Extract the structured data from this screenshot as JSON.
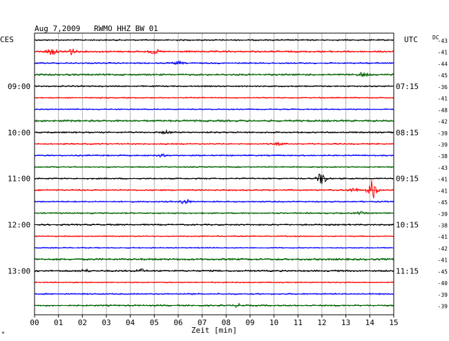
{
  "chart_data": {
    "type": "line",
    "title": "Aug 7,2009   RWMO HHZ BW 01",
    "left_timezone": "CES",
    "right_timezone": "UTC",
    "dc_label": "DC",
    "xlabel": "Zeit [min]",
    "x_ticks": [
      "00",
      "01",
      "02",
      "03",
      "04",
      "05",
      "06",
      "07",
      "08",
      "09",
      "10",
      "11",
      "12",
      "13",
      "14",
      "15"
    ],
    "xlim": [
      0,
      15
    ],
    "grid": true,
    "rows_per_hour": 4,
    "hour_labels_left": [
      "09:00",
      "10:00",
      "11:00",
      "12:00",
      "13:00"
    ],
    "hour_labels_right": [
      "07:15",
      "08:15",
      "09:15",
      "10:15",
      "11:15"
    ],
    "trace_colors": [
      "#000000",
      "#ff0000",
      "#0000ff",
      "#006400"
    ],
    "traces": [
      {
        "row": 0,
        "color": "#000000",
        "dc": -43,
        "amp": 1.0,
        "events": []
      },
      {
        "row": 1,
        "color": "#ff0000",
        "dc": -41,
        "amp": 1.2,
        "events": [
          {
            "t": 0.7,
            "a": 5
          },
          {
            "t": 1.5,
            "a": 5
          },
          {
            "t": 5.0,
            "a": 3
          }
        ]
      },
      {
        "row": 2,
        "color": "#0000ff",
        "dc": -44,
        "amp": 1.0,
        "events": [
          {
            "t": 6.0,
            "a": 2
          }
        ]
      },
      {
        "row": 3,
        "color": "#006400",
        "dc": -45,
        "amp": 1.3,
        "events": [
          {
            "t": 13.7,
            "a": 3
          }
        ]
      },
      {
        "row": 4,
        "color": "#000000",
        "dc": -36,
        "amp": 1.0,
        "events": []
      },
      {
        "row": 5,
        "color": "#ff0000",
        "dc": -41,
        "amp": 0.8,
        "events": []
      },
      {
        "row": 6,
        "color": "#0000ff",
        "dc": -48,
        "amp": 0.8,
        "events": []
      },
      {
        "row": 7,
        "color": "#006400",
        "dc": -42,
        "amp": 1.4,
        "events": []
      },
      {
        "row": 8,
        "color": "#000000",
        "dc": -39,
        "amp": 1.1,
        "events": [
          {
            "t": 5.5,
            "a": 2
          }
        ]
      },
      {
        "row": 9,
        "color": "#ff0000",
        "dc": -39,
        "amp": 0.9,
        "events": [
          {
            "t": 10.2,
            "a": 1.5
          }
        ]
      },
      {
        "row": 10,
        "color": "#0000ff",
        "dc": -38,
        "amp": 1.0,
        "events": [
          {
            "t": 5.3,
            "a": 1.5
          }
        ]
      },
      {
        "row": 11,
        "color": "#006400",
        "dc": -43,
        "amp": 0.9,
        "events": []
      },
      {
        "row": 12,
        "color": "#000000",
        "dc": -41,
        "amp": 1.0,
        "events": [
          {
            "t": 12.0,
            "a": 9
          }
        ]
      },
      {
        "row": 13,
        "color": "#ff0000",
        "dc": -41,
        "amp": 1.0,
        "events": [
          {
            "t": 13.3,
            "a": 3
          },
          {
            "t": 14.1,
            "a": 14
          }
        ]
      },
      {
        "row": 14,
        "color": "#0000ff",
        "dc": -45,
        "amp": 1.0,
        "events": [
          {
            "t": 6.3,
            "a": 4
          }
        ]
      },
      {
        "row": 15,
        "color": "#006400",
        "dc": -39,
        "amp": 1.0,
        "events": [
          {
            "t": 13.6,
            "a": 1.5
          }
        ]
      },
      {
        "row": 16,
        "color": "#000000",
        "dc": -38,
        "amp": 1.1,
        "events": []
      },
      {
        "row": 17,
        "color": "#ff0000",
        "dc": -41,
        "amp": 0.8,
        "events": []
      },
      {
        "row": 18,
        "color": "#0000ff",
        "dc": -42,
        "amp": 0.8,
        "events": []
      },
      {
        "row": 19,
        "color": "#006400",
        "dc": -41,
        "amp": 1.4,
        "events": []
      },
      {
        "row": 20,
        "color": "#000000",
        "dc": -45,
        "amp": 1.2,
        "events": [
          {
            "t": 2.1,
            "a": 2
          },
          {
            "t": 4.4,
            "a": 2.5
          }
        ]
      },
      {
        "row": 21,
        "color": "#ff0000",
        "dc": -40,
        "amp": 0.8,
        "events": []
      },
      {
        "row": 22,
        "color": "#0000ff",
        "dc": -39,
        "amp": 1.0,
        "events": []
      },
      {
        "row": 23,
        "color": "#006400",
        "dc": -39,
        "amp": 1.1,
        "events": [
          {
            "t": 8.5,
            "a": 2
          }
        ]
      }
    ]
  }
}
